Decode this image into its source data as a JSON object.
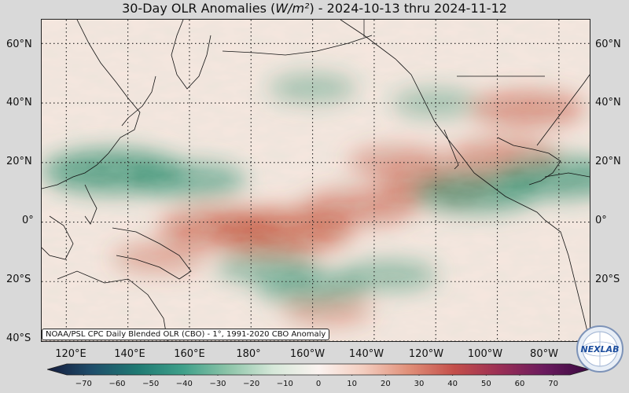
{
  "title": {
    "prefix": "30-Day OLR Anomalies (",
    "units": "W/m²",
    "suffix": ") - 2024-10-13 thru 2024-11-12"
  },
  "map": {
    "lat_labels": [
      "60°N",
      "40°N",
      "20°N",
      "0°",
      "20°S",
      "40°S"
    ],
    "lat_values": [
      60,
      40,
      20,
      0,
      -20,
      -40
    ],
    "lon_labels": [
      "120°E",
      "140°E",
      "160°E",
      "180°",
      "160°W",
      "140°W",
      "120°W",
      "100°W",
      "80°W"
    ],
    "lon_values": [
      120,
      140,
      160,
      180,
      200,
      220,
      240,
      260,
      280
    ],
    "extent": {
      "lon_min": 112,
      "lon_max": 290,
      "lat_min": -40,
      "lat_max": 68
    },
    "anomaly_features": [
      {
        "kind": "positive",
        "lon": 190,
        "lat": -3,
        "strength": 0.9
      },
      {
        "kind": "positive",
        "lon": 170,
        "lat": -2,
        "strength": 0.7
      },
      {
        "kind": "positive",
        "lon": 215,
        "lat": 5,
        "strength": 0.6
      },
      {
        "kind": "positive",
        "lon": 240,
        "lat": 12,
        "strength": 0.6
      },
      {
        "kind": "positive",
        "lon": 262,
        "lat": 22,
        "strength": 0.55
      },
      {
        "kind": "positive",
        "lon": 270,
        "lat": 38,
        "strength": 0.6
      },
      {
        "kind": "positive",
        "lon": 228,
        "lat": 20,
        "strength": 0.45
      },
      {
        "kind": "positive",
        "lon": 150,
        "lat": -12,
        "strength": 0.35
      },
      {
        "kind": "positive",
        "lon": 205,
        "lat": -30,
        "strength": 0.3
      },
      {
        "kind": "negative",
        "lon": 135,
        "lat": 17,
        "strength": 0.9
      },
      {
        "kind": "negative",
        "lon": 160,
        "lat": 14,
        "strength": 0.6
      },
      {
        "kind": "negative",
        "lon": 253,
        "lat": 10,
        "strength": 0.75
      },
      {
        "kind": "negative",
        "lon": 280,
        "lat": 15,
        "strength": 0.8
      },
      {
        "kind": "negative",
        "lon": 200,
        "lat": -22,
        "strength": 0.55
      },
      {
        "kind": "negative",
        "lon": 185,
        "lat": -15,
        "strength": 0.45
      },
      {
        "kind": "negative",
        "lon": 225,
        "lat": -18,
        "strength": 0.4
      },
      {
        "kind": "negative",
        "lon": 200,
        "lat": 45,
        "strength": 0.3
      },
      {
        "kind": "negative",
        "lon": 240,
        "lat": 40,
        "strength": 0.3
      }
    ],
    "colors": {
      "background": "#f7e6df",
      "positive": "#c8563f",
      "negative": "#2a8a6a",
      "coastline": "#111111",
      "grid": "#222222"
    }
  },
  "credit": "NOAA/PSL CPC Daily Blended OLR (CBO) - 1°, 1991-2020 CBO Anomaly",
  "colorbar": {
    "ticks": [
      "−70",
      "−60",
      "−50",
      "−40",
      "−30",
      "−20",
      "−10",
      "0",
      "10",
      "20",
      "30",
      "40",
      "50",
      "60",
      "70"
    ],
    "tick_values": [
      -70,
      -60,
      -50,
      -40,
      -30,
      -20,
      -10,
      0,
      10,
      20,
      30,
      40,
      50,
      60,
      70
    ],
    "range": [
      -75,
      75
    ],
    "colors": [
      "#141b3c",
      "#1f4e6b",
      "#1f7a73",
      "#3fa08a",
      "#8cc4a8",
      "#d6e8d9",
      "#fbf3f0",
      "#f3cdbf",
      "#e08f78",
      "#c44f4a",
      "#9b2f55",
      "#6a1a5e",
      "#3a0a40"
    ]
  },
  "logo": {
    "text": "NEXLAB"
  }
}
